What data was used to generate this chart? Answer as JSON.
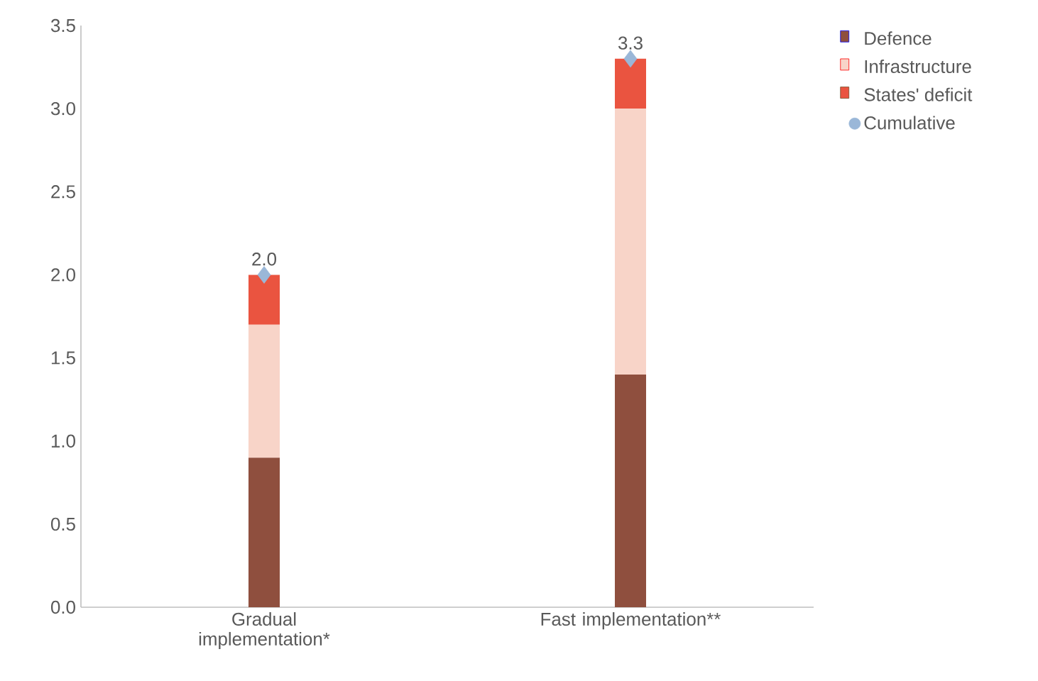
{
  "chart_data": {
    "type": "bar",
    "stacked": true,
    "categories": [
      "Gradual implementation*",
      "Fast implementation**"
    ],
    "series": [
      {
        "name": "Defence",
        "color": "#8f4f3e",
        "values": [
          0.9,
          1.4
        ]
      },
      {
        "name": "Infrastructure",
        "color": "#f8d4c8",
        "values": [
          0.8,
          1.6
        ]
      },
      {
        "name": "States' deficit",
        "color": "#ea5440",
        "values": [
          0.3,
          0.3
        ]
      },
      {
        "name": "Cumulative",
        "type": "scatter",
        "marker": "diamond",
        "color": "#9ab7d8",
        "values": [
          2.0,
          3.3
        ],
        "value_labels": [
          "2.0",
          "3.3"
        ]
      }
    ],
    "ylim": [
      0,
      3.5
    ],
    "yticks": [
      {
        "value": 0,
        "label": "0.0"
      },
      0.5,
      {
        "value": 1,
        "label": "1.0"
      },
      1.5,
      {
        "value": 2,
        "label": "2.0"
      },
      2.5,
      {
        "value": 3,
        "label": "3.0"
      },
      3.5
    ],
    "grid": false,
    "legend": "top right"
  }
}
